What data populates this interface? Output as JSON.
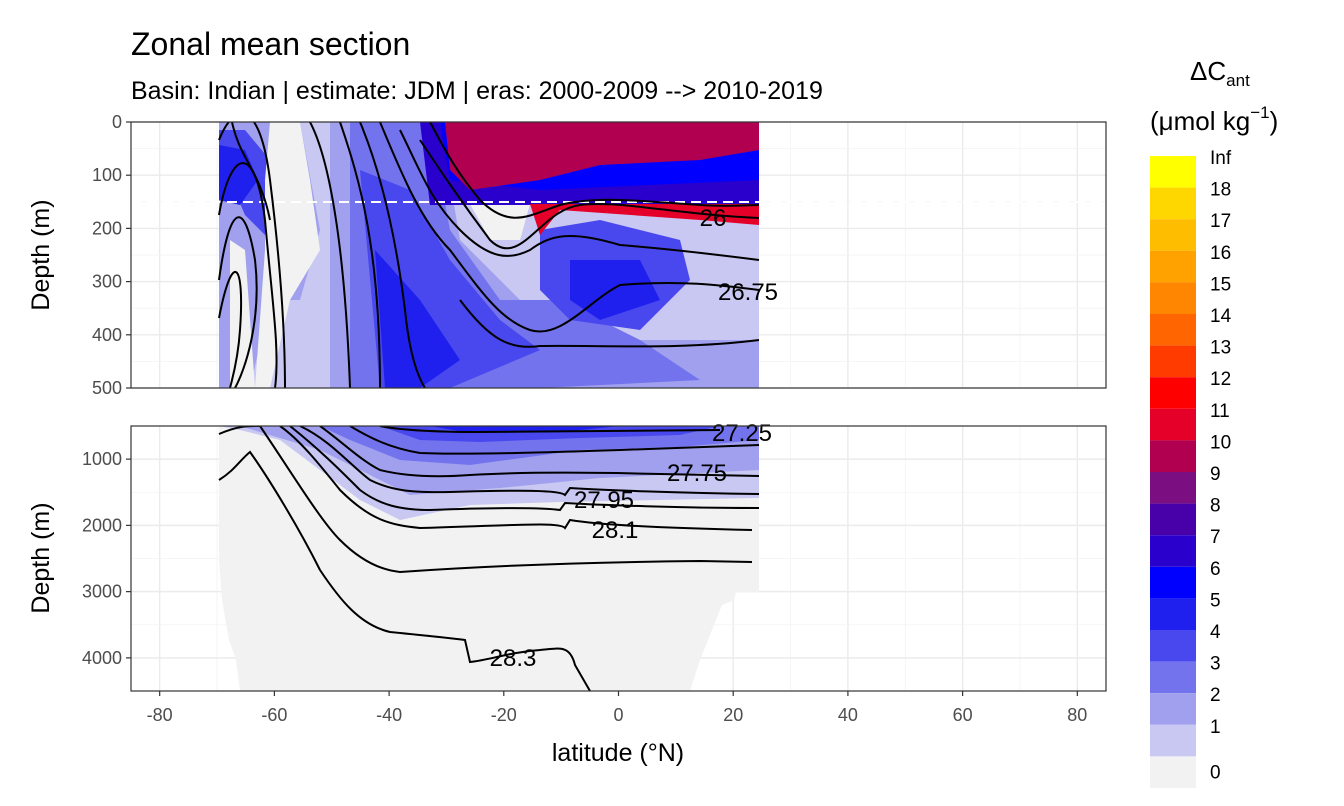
{
  "chart_data": {
    "type": "heatmap",
    "title": "Zonal mean section",
    "subtitle": "Basin: Indian | estimate: JDM  | eras: 2000-2009 --> 2010-2019",
    "xlabel": "latitude (°N)",
    "ylabel_top": "Depth (m)",
    "ylabel_bottom": "Depth (m)",
    "xlim": [
      -85,
      85
    ],
    "x_ticks": [
      "-80",
      "-60",
      "-40",
      "-20",
      "0",
      "20",
      "40",
      "60",
      "80"
    ],
    "top_panel": {
      "ylim": [
        0,
        500
      ],
      "y_ticks": [
        "0",
        "100",
        "200",
        "300",
        "400",
        "500"
      ],
      "mixed_layer_line_depth": 150
    },
    "bottom_panel": {
      "ylim": [
        500,
        4500
      ],
      "y_ticks": [
        "1000",
        "2000",
        "3000",
        "4000"
      ]
    },
    "grid": true,
    "legend_position": "right",
    "legend": {
      "title_main": "ΔC",
      "title_sub": "ant",
      "title_unit_pre": "(μmol kg",
      "title_unit_sup": "−1",
      "title_unit_post": ")",
      "labels": [
        "Inf",
        "18",
        "17",
        "16",
        "15",
        "14",
        "13",
        "12",
        "11",
        "10",
        "9",
        "8",
        "7",
        "6",
        "5",
        "4",
        "3",
        "2",
        "1",
        "0"
      ],
      "colors": [
        "#ffff00",
        "#ffd700",
        "#ffbd00",
        "#ffa200",
        "#ff8600",
        "#ff6500",
        "#ff3b00",
        "#ff0000",
        "#e5002a",
        "#b0004f",
        "#7b0e80",
        "#4800a8",
        "#2900cc",
        "#0000ff",
        "#2020ee",
        "#4848ee",
        "#7373ee",
        "#a0a0ee",
        "#c8c8f2",
        "#f2f2f2"
      ]
    },
    "isopycnal_labels": [
      {
        "text": "26",
        "lat": 17,
        "depth": 180,
        "panel": "top"
      },
      {
        "text": "26.75",
        "lat": 22,
        "depth": 325,
        "panel": "top"
      },
      {
        "text": "27.25",
        "lat": 17,
        "depth": 620,
        "panel": "bottom"
      },
      {
        "text": "27.75",
        "lat": 9,
        "depth": 1200,
        "panel": "bottom"
      },
      {
        "text": "27.95",
        "lat": -3,
        "depth": 1700,
        "panel": "bottom"
      },
      {
        "text": "28.1",
        "lat": -1,
        "depth": 2100,
        "panel": "bottom"
      },
      {
        "text": "28.3",
        "lat": -18,
        "depth": 4000,
        "panel": "bottom"
      }
    ]
  }
}
